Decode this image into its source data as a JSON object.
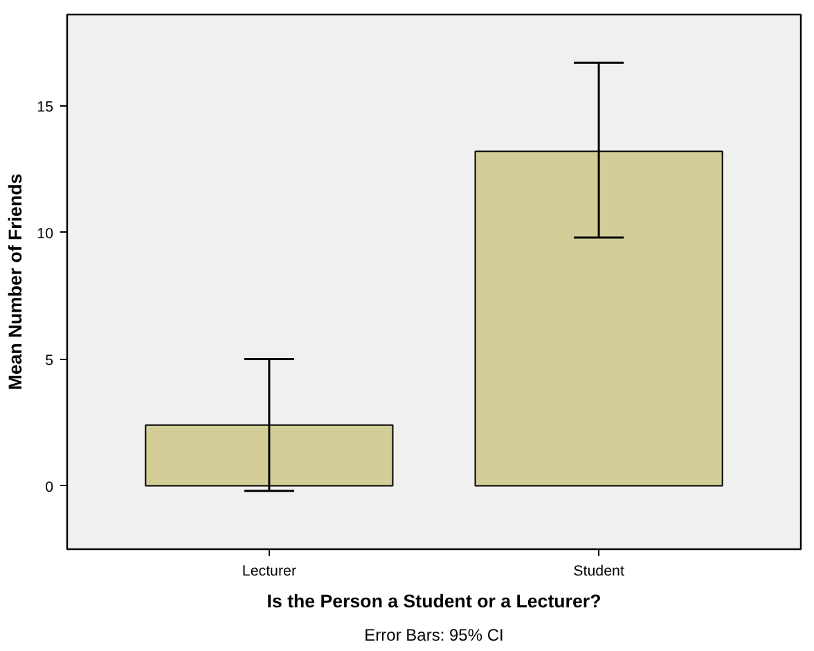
{
  "chart_data": {
    "type": "bar",
    "xlabel": "Is the Person a Student or a Lecturer?",
    "ylabel": "Mean Number of Friends",
    "categories": [
      "Lecturer",
      "Student"
    ],
    "values": [
      2.4,
      13.2
    ],
    "errors": [
      [
        -0.2,
        5.0
      ],
      [
        9.8,
        16.7
      ]
    ],
    "color": "#d3ce97",
    "ylim": [
      -2.5,
      18.6
    ],
    "yticks": [
      0,
      5,
      10,
      15
    ],
    "grid": false,
    "annotations": [
      "Error Bars: 95% CI"
    ]
  }
}
